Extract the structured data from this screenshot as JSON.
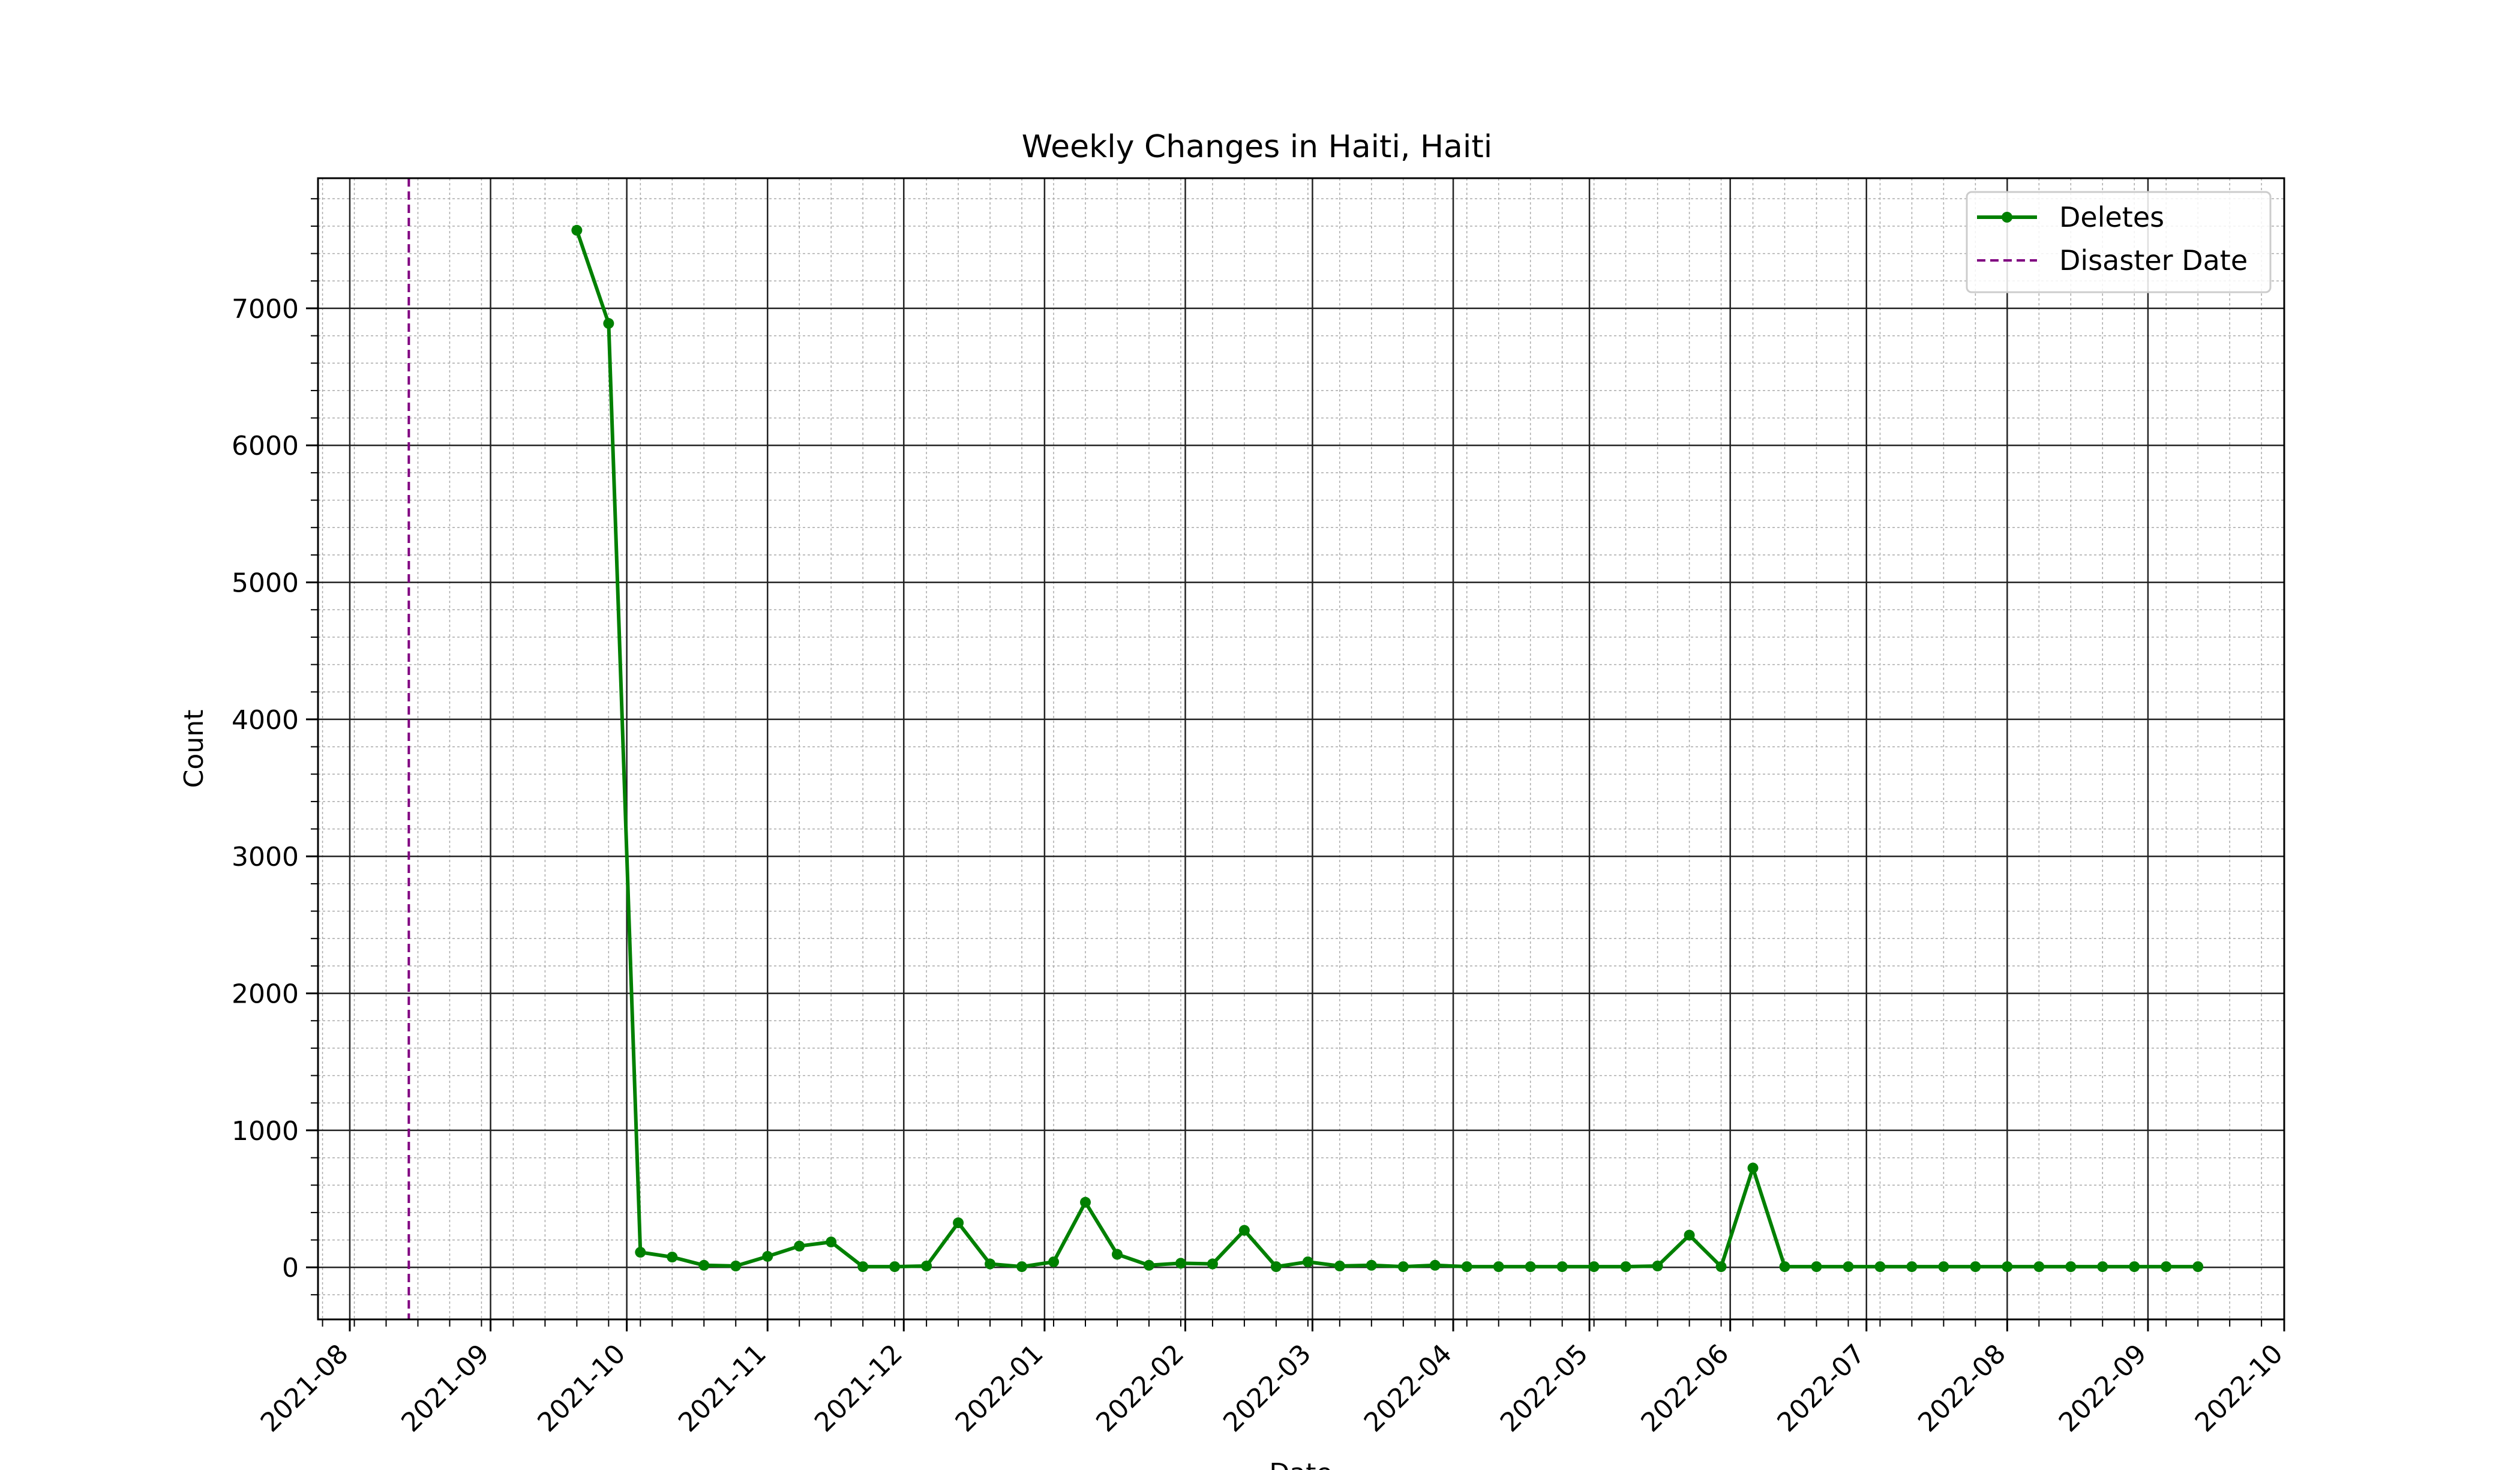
{
  "chart_data": {
    "type": "line",
    "title": "Weekly Changes in Haiti, Haiti",
    "xlabel": "Date",
    "ylabel": "Count",
    "x_ticks": [
      "2021-08",
      "2021-09",
      "2021-10",
      "2021-11",
      "2021-12",
      "2022-01",
      "2022-02",
      "2022-03",
      "2022-04",
      "2022-05",
      "2022-06",
      "2022-07",
      "2022-08",
      "2022-09",
      "2022-10"
    ],
    "x_tick_dates": [
      "2021-08-01",
      "2021-09-01",
      "2021-10-01",
      "2021-11-01",
      "2021-12-01",
      "2022-01-01",
      "2022-02-01",
      "2022-03-01",
      "2022-04-01",
      "2022-05-01",
      "2022-06-01",
      "2022-07-01",
      "2022-08-01",
      "2022-09-01",
      "2022-10-01"
    ],
    "y_ticks": [
      0,
      1000,
      2000,
      3000,
      4000,
      5000,
      6000,
      7000
    ],
    "xlim": [
      "2021-07-25",
      "2022-10-01"
    ],
    "ylim": [
      -380,
      7950
    ],
    "grid": "major and minor",
    "legend_position": "top-right",
    "disaster_date": "2021-08-14",
    "series": [
      {
        "name": "Deletes",
        "color": "#008000",
        "x": [
          "2021-09-20",
          "2021-09-27",
          "2021-10-04",
          "2021-10-11",
          "2021-10-18",
          "2021-10-25",
          "2021-11-01",
          "2021-11-08",
          "2021-11-15",
          "2021-11-22",
          "2021-11-29",
          "2021-12-06",
          "2021-12-13",
          "2021-12-20",
          "2021-12-27",
          "2022-01-03",
          "2022-01-10",
          "2022-01-17",
          "2022-01-24",
          "2022-01-31",
          "2022-02-07",
          "2022-02-14",
          "2022-02-21",
          "2022-02-28",
          "2022-03-07",
          "2022-03-14",
          "2022-03-21",
          "2022-03-28",
          "2022-04-04",
          "2022-04-11",
          "2022-04-18",
          "2022-04-25",
          "2022-05-02",
          "2022-05-09",
          "2022-05-16",
          "2022-05-23",
          "2022-05-30",
          "2022-06-06",
          "2022-06-13",
          "2022-06-20",
          "2022-06-27",
          "2022-07-04",
          "2022-07-11",
          "2022-07-18",
          "2022-07-25",
          "2022-08-01",
          "2022-08-08",
          "2022-08-15",
          "2022-08-22",
          "2022-08-29",
          "2022-09-05",
          "2022-09-12"
        ],
        "values": [
          7570,
          6890,
          110,
          75,
          15,
          10,
          80,
          155,
          185,
          5,
          5,
          10,
          325,
          25,
          5,
          40,
          475,
          95,
          15,
          30,
          25,
          270,
          5,
          40,
          10,
          15,
          5,
          15,
          5,
          5,
          5,
          5,
          5,
          5,
          10,
          235,
          5,
          725,
          5,
          5,
          5,
          5,
          5,
          5,
          5,
          5,
          5,
          5,
          5,
          5,
          5,
          5
        ]
      },
      {
        "name": "Disaster Date",
        "color": "#800080",
        "style": "dashed"
      }
    ]
  }
}
